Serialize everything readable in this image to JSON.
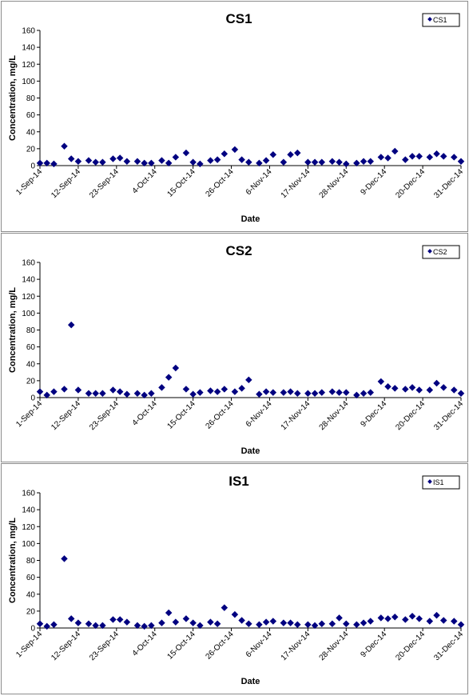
{
  "colors": {
    "marker": "#000080",
    "axis": "#000000",
    "frame": "#8c8c8c"
  },
  "chart_data": [
    {
      "type": "scatter",
      "title": "CS1",
      "xlabel": "Date",
      "ylabel": "Concentration, mg/L",
      "ylim": [
        0,
        160
      ],
      "yticks": [
        0,
        20,
        40,
        60,
        80,
        100,
        120,
        140,
        160
      ],
      "xlim": [
        "2014-09-01",
        "2014-12-31"
      ],
      "xticks": [
        "1-Sep-14",
        "12-Sep-14",
        "23-Sep-14",
        "4-Oct-14",
        "15-Oct-14",
        "26-Oct-14",
        "6-Nov-14",
        "17-Nov-14",
        "28-Nov-14",
        "9-Dec-14",
        "20-Dec-14",
        "31-Dec-14"
      ],
      "legend": "top-right",
      "series": [
        {
          "name": "CS1",
          "x": [
            "2014-09-01",
            "2014-09-03",
            "2014-09-05",
            "2014-09-08",
            "2014-09-10",
            "2014-09-12",
            "2014-09-15",
            "2014-09-17",
            "2014-09-19",
            "2014-09-22",
            "2014-09-24",
            "2014-09-26",
            "2014-09-29",
            "2014-10-01",
            "2014-10-03",
            "2014-10-06",
            "2014-10-08",
            "2014-10-10",
            "2014-10-13",
            "2014-10-15",
            "2014-10-17",
            "2014-10-20",
            "2014-10-22",
            "2014-10-24",
            "2014-10-27",
            "2014-10-29",
            "2014-10-31",
            "2014-11-03",
            "2014-11-05",
            "2014-11-07",
            "2014-11-10",
            "2014-11-12",
            "2014-11-14",
            "2014-11-17",
            "2014-11-19",
            "2014-11-21",
            "2014-11-24",
            "2014-11-26",
            "2014-11-28",
            "2014-12-01",
            "2014-12-03",
            "2014-12-05",
            "2014-12-08",
            "2014-12-10",
            "2014-12-12",
            "2014-12-15",
            "2014-12-17",
            "2014-12-19",
            "2014-12-22",
            "2014-12-24",
            "2014-12-26",
            "2014-12-29",
            "2014-12-31"
          ],
          "y": [
            3,
            3,
            2,
            23,
            8,
            5,
            6,
            4,
            4,
            8,
            9,
            5,
            5,
            3,
            3,
            6,
            3,
            10,
            15,
            4,
            2,
            6,
            7,
            14,
            19,
            7,
            4,
            3,
            6,
            13,
            4,
            13,
            15,
            4,
            4,
            4,
            5,
            4,
            2,
            3,
            5,
            5,
            10,
            9,
            17,
            7,
            11,
            11,
            10,
            14,
            11,
            10,
            5
          ]
        }
      ]
    },
    {
      "type": "scatter",
      "title": "CS2",
      "xlabel": "Date",
      "ylabel": "Concentration, mg/L",
      "ylim": [
        0,
        160
      ],
      "yticks": [
        0,
        20,
        40,
        60,
        80,
        100,
        120,
        140,
        160
      ],
      "xlim": [
        "2014-09-01",
        "2014-12-31"
      ],
      "xticks": [
        "1-Sep-14",
        "12-Sep-14",
        "23-Sep-14",
        "4-Oct-14",
        "15-Oct-14",
        "26-Oct-14",
        "6-Nov-14",
        "17-Nov-14",
        "28-Nov-14",
        "9-Dec-14",
        "20-Dec-14",
        "31-Dec-14"
      ],
      "legend": "top-right",
      "series": [
        {
          "name": "CS2",
          "x": [
            "2014-09-01",
            "2014-09-03",
            "2014-09-05",
            "2014-09-08",
            "2014-09-10",
            "2014-09-12",
            "2014-09-15",
            "2014-09-17",
            "2014-09-19",
            "2014-09-22",
            "2014-09-24",
            "2014-09-26",
            "2014-09-29",
            "2014-10-01",
            "2014-10-03",
            "2014-10-06",
            "2014-10-08",
            "2014-10-10",
            "2014-10-13",
            "2014-10-15",
            "2014-10-17",
            "2014-10-20",
            "2014-10-22",
            "2014-10-24",
            "2014-10-27",
            "2014-10-29",
            "2014-10-31",
            "2014-11-03",
            "2014-11-05",
            "2014-11-07",
            "2014-11-10",
            "2014-11-12",
            "2014-11-14",
            "2014-11-17",
            "2014-11-19",
            "2014-11-21",
            "2014-11-24",
            "2014-11-26",
            "2014-11-28",
            "2014-12-01",
            "2014-12-03",
            "2014-12-05",
            "2014-12-08",
            "2014-12-10",
            "2014-12-12",
            "2014-12-15",
            "2014-12-17",
            "2014-12-19",
            "2014-12-22",
            "2014-12-24",
            "2014-12-26",
            "2014-12-29",
            "2014-12-31"
          ],
          "y": [
            7,
            3,
            7,
            10,
            86,
            9,
            5,
            5,
            5,
            9,
            7,
            4,
            5,
            3,
            5,
            12,
            24,
            35,
            10,
            4,
            6,
            8,
            7,
            10,
            7,
            11,
            21,
            4,
            7,
            6,
            6,
            7,
            5,
            5,
            5,
            6,
            7,
            6,
            6,
            3,
            5,
            6,
            19,
            13,
            11,
            10,
            12,
            9,
            9,
            17,
            12,
            9,
            5
          ]
        }
      ]
    },
    {
      "type": "scatter",
      "title": "IS1",
      "xlabel": "Date",
      "ylabel": "Concentration, mg/L",
      "ylim": [
        0,
        160
      ],
      "yticks": [
        0,
        20,
        40,
        60,
        80,
        100,
        120,
        140,
        160
      ],
      "xlim": [
        "2014-09-01",
        "2014-12-31"
      ],
      "xticks": [
        "1-Sep-14",
        "12-Sep-14",
        "23-Sep-14",
        "4-Oct-14",
        "15-Oct-14",
        "26-Oct-14",
        "6-Nov-14",
        "17-Nov-14",
        "28-Nov-14",
        "9-Dec-14",
        "20-Dec-14",
        "31-Dec-14"
      ],
      "legend": "top-right",
      "series": [
        {
          "name": "IS1",
          "x": [
            "2014-09-01",
            "2014-09-03",
            "2014-09-05",
            "2014-09-08",
            "2014-09-10",
            "2014-09-12",
            "2014-09-15",
            "2014-09-17",
            "2014-09-19",
            "2014-09-22",
            "2014-09-24",
            "2014-09-26",
            "2014-09-29",
            "2014-10-01",
            "2014-10-03",
            "2014-10-06",
            "2014-10-08",
            "2014-10-10",
            "2014-10-13",
            "2014-10-15",
            "2014-10-17",
            "2014-10-20",
            "2014-10-22",
            "2014-10-24",
            "2014-10-27",
            "2014-10-29",
            "2014-10-31",
            "2014-11-03",
            "2014-11-05",
            "2014-11-07",
            "2014-11-10",
            "2014-11-12",
            "2014-11-14",
            "2014-11-17",
            "2014-11-19",
            "2014-11-21",
            "2014-11-24",
            "2014-11-26",
            "2014-11-28",
            "2014-12-01",
            "2014-12-03",
            "2014-12-05",
            "2014-12-08",
            "2014-12-10",
            "2014-12-12",
            "2014-12-15",
            "2014-12-17",
            "2014-12-19",
            "2014-12-22",
            "2014-12-24",
            "2014-12-26",
            "2014-12-29",
            "2014-12-31"
          ],
          "y": [
            5,
            2,
            4,
            82,
            11,
            6,
            5,
            3,
            3,
            10,
            10,
            7,
            3,
            2,
            3,
            6,
            18,
            7,
            11,
            6,
            3,
            7,
            5,
            24,
            16,
            9,
            5,
            4,
            7,
            8,
            6,
            6,
            4,
            4,
            3,
            5,
            5,
            12,
            5,
            4,
            6,
            8,
            12,
            11,
            13,
            10,
            14,
            11,
            8,
            15,
            9,
            8,
            4
          ]
        }
      ]
    }
  ]
}
